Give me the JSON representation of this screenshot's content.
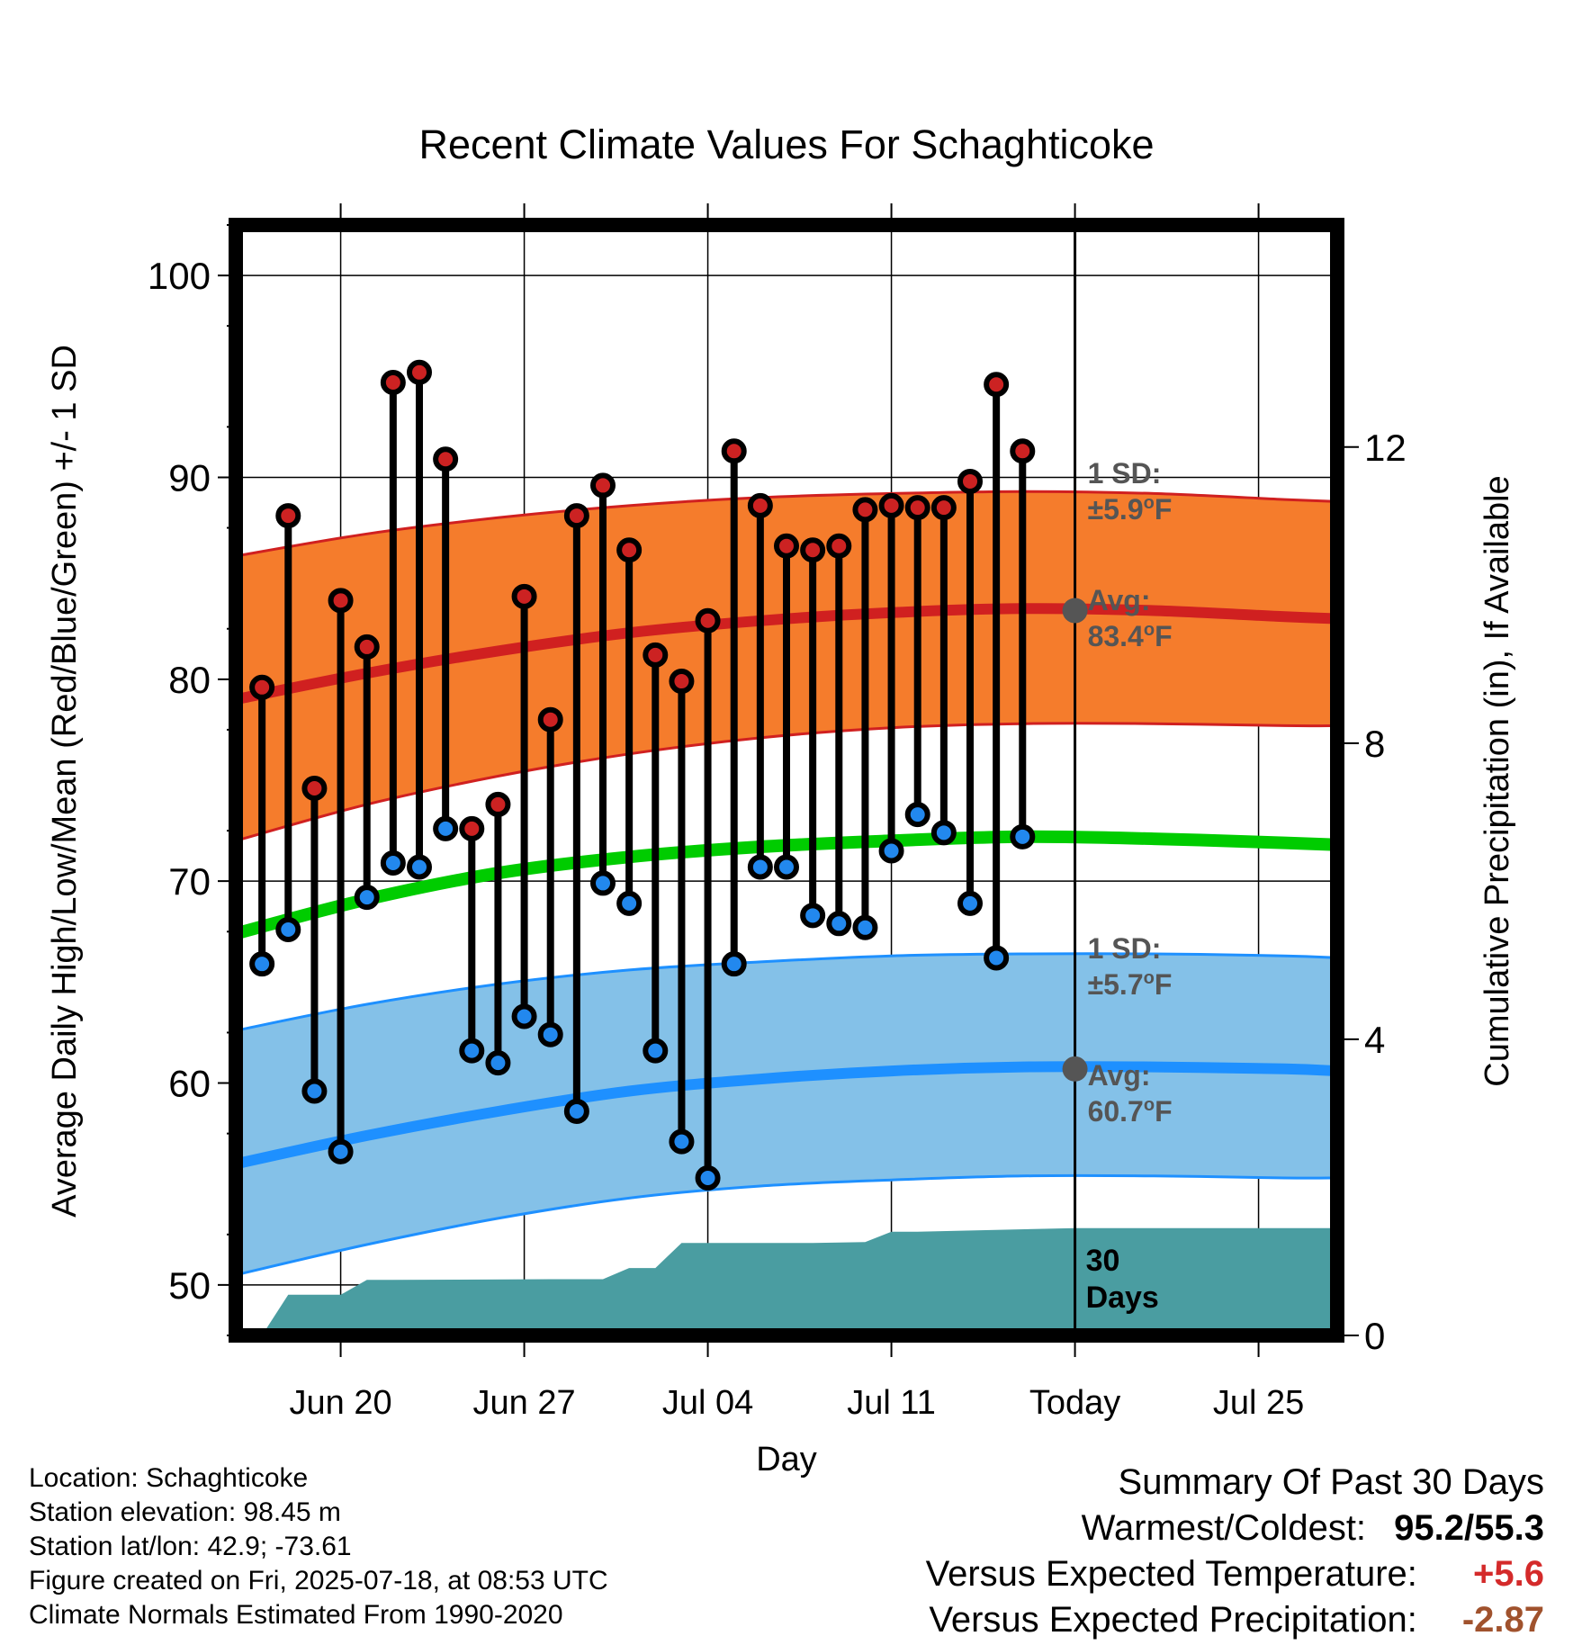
{
  "chart_data": {
    "type": "line",
    "title": "Recent Climate Values For Schaghticoke",
    "xlabel": "Day",
    "ylabel": "Average Daily High/Low/Mean (Red/Blue/Green) +/- 1 SD",
    "y2label": "Cumulative Precipitation (in), If Available",
    "ylim": [
      47.5,
      102.5
    ],
    "y_ticks": [
      50,
      60,
      70,
      80,
      90,
      100
    ],
    "y_tick_labels": [
      "50",
      "60",
      "70",
      "80",
      "90",
      "100"
    ],
    "y2lim": [
      0,
      15
    ],
    "y2_ticks": [
      0,
      4,
      8,
      12
    ],
    "y2_tick_labels": [
      "0",
      "4",
      "8",
      "12"
    ],
    "xlim": [
      "2025-06-16",
      "2025-07-28"
    ],
    "x_ticks": [
      "2025-06-20",
      "2025-06-27",
      "2025-07-04",
      "2025-07-11",
      "2025-07-18",
      "2025-07-25"
    ],
    "x_tick_labels": [
      "Jun 20",
      "Jun 27",
      "Jul 04",
      "Jul 11",
      "Today",
      "Jul 25"
    ],
    "grid": true,
    "today": "2025-07-18",
    "daily": {
      "dates": [
        "2025-06-17",
        "2025-06-18",
        "2025-06-19",
        "2025-06-20",
        "2025-06-21",
        "2025-06-22",
        "2025-06-23",
        "2025-06-24",
        "2025-06-25",
        "2025-06-26",
        "2025-06-27",
        "2025-06-28",
        "2025-06-29",
        "2025-06-30",
        "2025-07-01",
        "2025-07-02",
        "2025-07-03",
        "2025-07-04",
        "2025-07-05",
        "2025-07-06",
        "2025-07-07",
        "2025-07-08",
        "2025-07-09",
        "2025-07-10",
        "2025-07-11",
        "2025-07-12",
        "2025-07-13",
        "2025-07-14",
        "2025-07-15",
        "2025-07-16",
        "2025-07-17"
      ],
      "high": [
        79.6,
        88.1,
        74.6,
        83.9,
        81.6,
        94.7,
        95.2,
        90.9,
        72.6,
        73.8,
        84.1,
        78.0,
        88.1,
        89.6,
        86.4,
        81.2,
        79.9,
        82.9,
        91.3,
        88.6,
        86.6,
        86.4,
        86.6,
        88.4,
        88.6,
        88.5,
        88.5,
        89.8,
        94.6,
        91.3,
        null
      ],
      "low": [
        65.9,
        67.6,
        59.6,
        56.6,
        69.2,
        70.9,
        70.7,
        72.6,
        61.6,
        61.0,
        63.3,
        62.4,
        58.6,
        69.9,
        68.9,
        61.6,
        57.1,
        55.3,
        65.9,
        70.7,
        70.7,
        68.3,
        67.9,
        67.7,
        71.5,
        73.3,
        72.4,
        68.9,
        66.2,
        72.2,
        null
      ],
      "high_color": "#cc2222",
      "low_color": "#2288ee"
    },
    "normals": {
      "dates": [
        "2025-06-16",
        "2025-06-21",
        "2025-06-26",
        "2025-07-01",
        "2025-07-06",
        "2025-07-11",
        "2025-07-16",
        "2025-07-21",
        "2025-07-26",
        "2025-07-28"
      ],
      "high_avg": [
        79.0,
        80.3,
        81.4,
        82.3,
        82.9,
        83.3,
        83.5,
        83.4,
        83.1,
        83.0
      ],
      "high_sd_upper": [
        86.1,
        87.2,
        88.0,
        88.6,
        89.0,
        89.2,
        89.3,
        89.2,
        88.9,
        88.8
      ],
      "high_sd_lower": [
        72.0,
        73.8,
        75.2,
        76.3,
        77.1,
        77.6,
        77.8,
        77.8,
        77.7,
        77.7
      ],
      "mean": [
        67.4,
        69.1,
        70.4,
        71.2,
        71.7,
        72.0,
        72.2,
        72.1,
        71.9,
        71.8
      ],
      "low_avg": [
        56.0,
        57.4,
        58.6,
        59.6,
        60.2,
        60.6,
        60.8,
        60.8,
        60.7,
        60.6
      ],
      "low_sd_upper": [
        62.6,
        63.9,
        64.9,
        65.6,
        66.0,
        66.3,
        66.4,
        66.4,
        66.3,
        66.2
      ],
      "low_sd_lower": [
        50.5,
        52.0,
        53.3,
        54.3,
        54.9,
        55.2,
        55.4,
        55.4,
        55.3,
        55.3
      ],
      "high_band_color": "#f57c2c",
      "high_line_color": "#d02020",
      "mean_color": "#00cc00",
      "low_band_color": "#84c1e8",
      "low_line_color": "#1e90ff"
    },
    "precipitation": {
      "dates": [
        "2025-06-16",
        "2025-06-17",
        "2025-06-18",
        "2025-06-19",
        "2025-06-20",
        "2025-06-21",
        "2025-06-22",
        "2025-06-28",
        "2025-06-30",
        "2025-07-01",
        "2025-07-02",
        "2025-07-03",
        "2025-07-08",
        "2025-07-10",
        "2025-07-11",
        "2025-07-12",
        "2025-07-18",
        "2025-07-28"
      ],
      "values": [
        0.0,
        0.0,
        0.55,
        0.55,
        0.55,
        0.75,
        0.75,
        0.76,
        0.76,
        0.91,
        0.91,
        1.25,
        1.25,
        1.26,
        1.4,
        1.4,
        1.45,
        1.45
      ],
      "color": "#4a9da1"
    },
    "annotations": {
      "high_sd_label": "1 SD:",
      "high_sd_value": "±5.9",
      "high_avg_label": "Avg:",
      "high_avg_value": "83.4",
      "low_sd_label": "1 SD:",
      "low_sd_value": "±5.7",
      "low_avg_label": "Avg:",
      "low_avg_value": "60.7",
      "unit_sup": "o",
      "unit_letter": "F",
      "today_high_avg": 83.4,
      "today_low_avg": 60.7,
      "days_label_line1": "30",
      "days_label_line2": "Days",
      "label_color": "#555555"
    }
  },
  "footer": {
    "location": "Location: Schaghticoke",
    "elevation": "Station elevation: 98.45 m",
    "latlon": "Station lat/lon: 42.9; -73.61",
    "created": "Figure created on Fri, 2025-07-18, at 08:53 UTC",
    "normals": "Climate Normals Estimated From 1990-2020"
  },
  "summary": {
    "title": "Summary Of Past 30 Days",
    "warmest_coldest_label": "Warmest/Coldest:",
    "warmest_coldest_value": "95.2/55.3",
    "temp_label": "Versus Expected Temperature:",
    "temp_value": "+5.6",
    "temp_color": "#d42a2a",
    "precip_label": "Versus Expected Precipitation:",
    "precip_value": "-2.87",
    "precip_color": "#a0522d"
  }
}
